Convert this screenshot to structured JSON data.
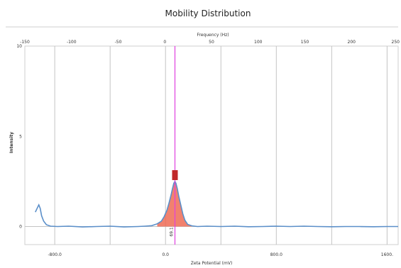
{
  "chart_data": {
    "type": "area",
    "title": "Mobility Distribution",
    "xlabel": "Zeta Potential (mV)",
    "ylabel": "Intensity",
    "top_axis_label": "Frequency (Hz)",
    "xlim": [
      -1016,
      1680
    ],
    "ylim": [
      -1,
      10
    ],
    "x_ticks": [
      {
        "value": -800,
        "label": "-800.0"
      },
      {
        "value": 0,
        "label": "0.0"
      },
      {
        "value": 800,
        "label": "800.0"
      },
      {
        "value": 1600,
        "label": "1600."
      }
    ],
    "y_ticks": [
      {
        "value": 0,
        "label": "0"
      },
      {
        "value": 5,
        "label": "5"
      },
      {
        "value": 10,
        "label": "10"
      }
    ],
    "top_ticks": [
      {
        "value": -150,
        "label": "-150"
      },
      {
        "value": -100,
        "label": "-100"
      },
      {
        "value": -50,
        "label": "-50"
      },
      {
        "value": 0,
        "label": "0"
      },
      {
        "value": 50,
        "label": "50"
      },
      {
        "value": 100,
        "label": "100"
      },
      {
        "value": 150,
        "label": "150"
      },
      {
        "value": 200,
        "label": "200"
      },
      {
        "value": 250,
        "label": "250"
      }
    ],
    "top_axis_map": {
      "hz": [
        -150,
        250
      ],
      "mv": [
        -1016,
        1680
      ]
    },
    "vertical_gridlines_mv": [
      -800,
      -400,
      0,
      400,
      800,
      1200,
      1600
    ],
    "grid": true,
    "peak_marker": {
      "x": 68,
      "y": 2.85,
      "label": "69.1"
    },
    "series": [
      {
        "color": "#5b8fc9",
        "points": [
          [
            -940,
            0.8
          ],
          [
            -925,
            1.05
          ],
          [
            -915,
            1.2
          ],
          [
            -905,
            1.0
          ],
          [
            -895,
            0.6
          ],
          [
            -880,
            0.3
          ],
          [
            -860,
            0.1
          ],
          [
            -830,
            0.02
          ],
          [
            -780,
            0.0
          ],
          [
            -700,
            0.02
          ],
          [
            -600,
            -0.02
          ],
          [
            -500,
            0.0
          ],
          [
            -400,
            0.02
          ],
          [
            -300,
            -0.02
          ],
          [
            -200,
            0.0
          ],
          [
            -150,
            0.02
          ],
          [
            -100,
            0.05
          ],
          [
            -60,
            0.15
          ],
          [
            -30,
            0.3
          ],
          [
            -10,
            0.55
          ],
          [
            10,
            0.9
          ],
          [
            25,
            1.3
          ],
          [
            40,
            1.75
          ],
          [
            50,
            2.1
          ],
          [
            60,
            2.4
          ],
          [
            68,
            2.5
          ],
          [
            75,
            2.4
          ],
          [
            85,
            2.1
          ],
          [
            95,
            1.7
          ],
          [
            110,
            1.2
          ],
          [
            125,
            0.7
          ],
          [
            140,
            0.35
          ],
          [
            160,
            0.12
          ],
          [
            190,
            0.04
          ],
          [
            230,
            0.0
          ],
          [
            300,
            0.02
          ],
          [
            400,
            0.0
          ],
          [
            500,
            0.02
          ],
          [
            600,
            -0.01
          ],
          [
            700,
            0.0
          ],
          [
            800,
            0.02
          ],
          [
            900,
            0.0
          ],
          [
            1000,
            0.02
          ],
          [
            1100,
            0.0
          ],
          [
            1200,
            -0.01
          ],
          [
            1300,
            0.0
          ],
          [
            1400,
            0.0
          ],
          [
            1500,
            -0.01
          ],
          [
            1600,
            0.0
          ],
          [
            1680,
            0.0
          ]
        ],
        "fill_color": "#ee6b55",
        "fill_range": [
          -90,
          225
        ]
      }
    ],
    "marker_line": {
      "x": 68,
      "color": "#e040e0"
    },
    "colors": {
      "grid": "#c4c4c4",
      "frame": "#cfcfcf",
      "peak_box": "#c0282a"
    }
  }
}
